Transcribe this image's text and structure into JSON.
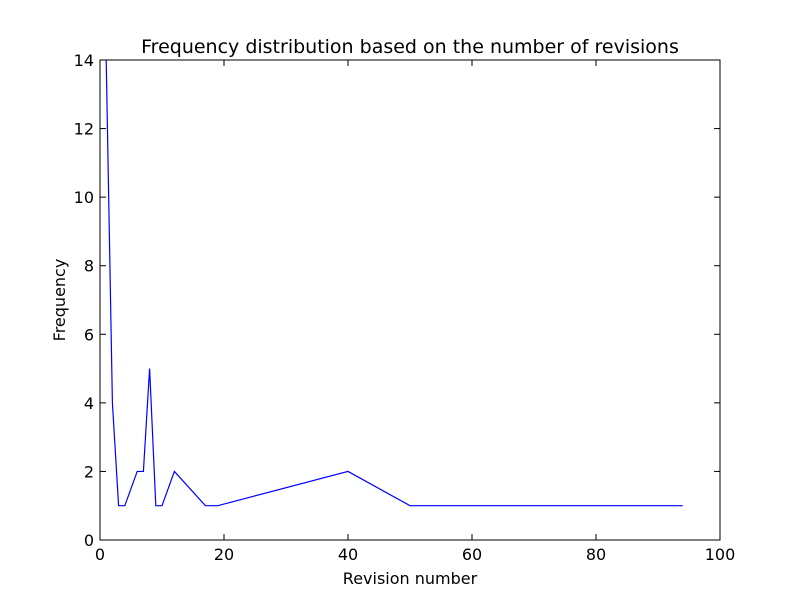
{
  "chart_data": {
    "type": "line",
    "title": "Frequency distribution based on the number of revisions",
    "xlabel": "Revision number",
    "ylabel": "Frequency",
    "xlim": [
      0,
      100
    ],
    "ylim": [
      0,
      14
    ],
    "xticks": [
      "0",
      "20",
      "40",
      "60",
      "80",
      "100"
    ],
    "yticks": [
      "0",
      "2",
      "4",
      "6",
      "8",
      "10",
      "12",
      "14"
    ],
    "grid": false,
    "series": [
      {
        "color": "#0000ff",
        "x": [
          1,
          2,
          3,
          4,
          6,
          7,
          8,
          9,
          10,
          12,
          17,
          19,
          40,
          50,
          94
        ],
        "y": [
          14,
          4,
          1,
          1,
          2,
          2,
          5,
          1,
          1,
          2,
          1,
          1,
          2,
          1,
          1
        ]
      }
    ]
  }
}
